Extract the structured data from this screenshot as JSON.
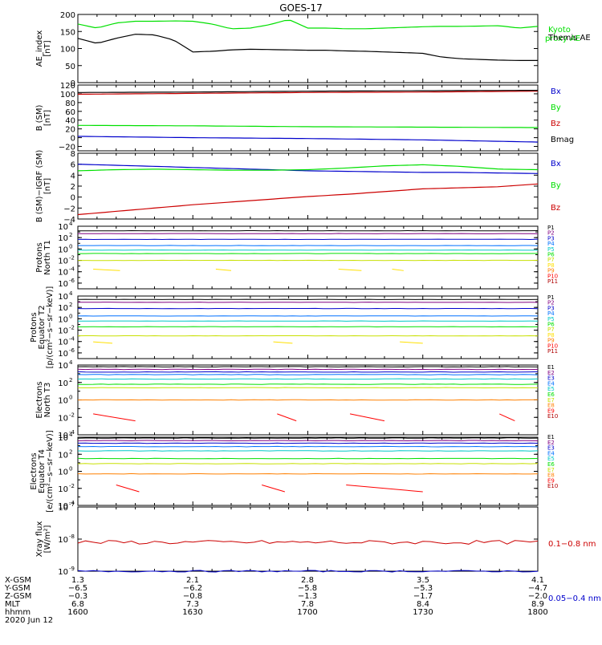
{
  "title": "GOES-17",
  "chart_data": [
    {
      "panel": "ae",
      "type": "line",
      "ylabel": [
        "AE_index",
        "[nT]"
      ],
      "ylim": [
        0,
        200
      ],
      "yticks": [
        "0",
        "50",
        "100",
        "150",
        "200"
      ],
      "series": [
        {
          "name": "Kyoto",
          "name2": "proxy AE",
          "color": "#00e000",
          "x": [
            1600,
            1605,
            1610,
            1615,
            1620,
            1625,
            1630,
            1635,
            1640,
            1645,
            1650,
            1655,
            1700,
            1705,
            1710,
            1715,
            1720,
            1725,
            1730,
            1735,
            1740,
            1745,
            1750,
            1755,
            1800
          ],
          "y": [
            172,
            160,
            175,
            180,
            180,
            181,
            180,
            172,
            158,
            160,
            170,
            185,
            160,
            160,
            158,
            158,
            160,
            162,
            164,
            165,
            165,
            166,
            167,
            160,
            165
          ]
        },
        {
          "name": "Themis AE",
          "color": "#000000",
          "x": [
            1600,
            1605,
            1610,
            1615,
            1620,
            1625,
            1630,
            1635,
            1640,
            1645,
            1650,
            1655,
            1700,
            1705,
            1710,
            1715,
            1720,
            1725,
            1730,
            1735,
            1740,
            1745,
            1750,
            1755,
            1800
          ],
          "y": [
            130,
            115,
            130,
            142,
            140,
            125,
            90,
            92,
            96,
            98,
            97,
            96,
            95,
            95,
            93,
            92,
            90,
            88,
            86,
            75,
            70,
            68,
            66,
            65,
            65
          ]
        }
      ]
    },
    {
      "panel": "bsm",
      "type": "line",
      "ylabel": [
        "B (SM)",
        "[nT]"
      ],
      "ylim": [
        -30,
        120
      ],
      "yticks": [
        "−20",
        "0",
        "20",
        "40",
        "60",
        "80",
        "100",
        "120"
      ],
      "series": [
        {
          "name": "Bx",
          "color": "#0000cc",
          "x": [
            1600,
            1630,
            1700,
            1730,
            1800
          ],
          "y": [
            3,
            0,
            -2,
            -5,
            -10
          ]
        },
        {
          "name": "By",
          "color": "#00e000",
          "x": [
            1600,
            1630,
            1700,
            1730,
            1800
          ],
          "y": [
            28,
            27,
            25,
            24,
            23
          ]
        },
        {
          "name": "Bz",
          "color": "#cc0000",
          "x": [
            1600,
            1630,
            1700,
            1730,
            1800
          ],
          "y": [
            99,
            101,
            103,
            104,
            106
          ]
        },
        {
          "name": "Bmag",
          "color": "#000000",
          "x": [
            1600,
            1630,
            1700,
            1730,
            1800
          ],
          "y": [
            103,
            104,
            106,
            107,
            108
          ]
        }
      ]
    },
    {
      "panel": "bdiff",
      "type": "line",
      "ylabel": [
        "B (SM)−IGRF (SM)",
        "[nT]"
      ],
      "ylim": [
        -4,
        8
      ],
      "yticks": [
        "−4",
        "−2",
        "0",
        "2",
        "4",
        "6",
        "8"
      ],
      "series": [
        {
          "name": "Bx",
          "color": "#0000cc",
          "x": [
            1600,
            1610,
            1620,
            1630,
            1640,
            1650,
            1700,
            1710,
            1720,
            1730,
            1740,
            1750,
            1800
          ],
          "y": [
            6.0,
            5.8,
            5.6,
            5.4,
            5.2,
            5.0,
            4.8,
            4.7,
            4.6,
            4.5,
            4.5,
            4.4,
            4.3
          ]
        },
        {
          "name": "By",
          "color": "#00e000",
          "x": [
            1600,
            1610,
            1620,
            1630,
            1640,
            1650,
            1700,
            1710,
            1720,
            1730,
            1740,
            1750,
            1800
          ],
          "y": [
            4.8,
            5.0,
            5.1,
            5.0,
            4.9,
            4.9,
            5.0,
            5.3,
            5.7,
            5.9,
            5.6,
            5.1,
            5.0
          ]
        },
        {
          "name": "Bz",
          "color": "#cc0000",
          "x": [
            1600,
            1610,
            1620,
            1630,
            1640,
            1650,
            1700,
            1710,
            1720,
            1730,
            1740,
            1750,
            1800
          ],
          "y": [
            -3.2,
            -2.6,
            -2.0,
            -1.4,
            -0.9,
            -0.4,
            0.1,
            0.5,
            1.0,
            1.5,
            1.7,
            1.9,
            2.4
          ]
        }
      ]
    },
    {
      "panel": "protons-north",
      "type": "line",
      "ylabel": [
        "Protons",
        "North T1"
      ],
      "log": true,
      "ylim_exp": [
        -7,
        4
      ],
      "ticks": [
        {
          "exp": 4,
          "label": "10"
        },
        {
          "exp": 2,
          "label": "10"
        },
        {
          "exp": 0,
          "label": "10"
        },
        {
          "exp": -2,
          "label": "10"
        },
        {
          "exp": -4,
          "label": "10"
        },
        {
          "exp": -6,
          "label": "10"
        }
      ],
      "tick_sups": [
        "4",
        "2",
        "0",
        "-2",
        "-4",
        "-6"
      ],
      "series": [
        {
          "name": "P1",
          "color": "#000000",
          "level": 3.2
        },
        {
          "name": "P2",
          "color": "#800080",
          "level": 2.7
        },
        {
          "name": "P3",
          "color": "#0000cc",
          "level": 1.7
        },
        {
          "name": "P4",
          "color": "#0070ff",
          "level": 0.6
        },
        {
          "name": "P5",
          "color": "#00c8c8",
          "level": -0.2
        },
        {
          "name": "P6",
          "color": "#00e000",
          "level": -0.8
        },
        {
          "name": "P7",
          "color": "#c8e000",
          "level": -2.0
        },
        {
          "name": "P8",
          "color": "#ffe000",
          "level": -3.7,
          "segments": [
            [
              1604,
              1611
            ],
            [
              1636,
              1640
            ],
            [
              1708,
              1714
            ],
            [
              1722,
              1725
            ]
          ]
        },
        {
          "name": "P9",
          "color": "#ff8000"
        },
        {
          "name": "P10",
          "color": "#ff0000"
        },
        {
          "name": "P11",
          "color": "#b00000"
        }
      ]
    },
    {
      "panel": "protons-equator",
      "type": "line",
      "ylabel": [
        "Protons",
        "Equator T2",
        "[p/(cm²−s−sr−keV)]"
      ],
      "log": true,
      "ylim_exp": [
        -7,
        4
      ],
      "ticks": [
        {
          "exp": 4,
          "label": "10"
        },
        {
          "exp": 2,
          "label": "10"
        },
        {
          "exp": 0,
          "label": "10"
        },
        {
          "exp": -2,
          "label": "10"
        },
        {
          "exp": -4,
          "label": "10"
        },
        {
          "exp": -6,
          "label": "10"
        }
      ],
      "tick_sups": [
        "4",
        "2",
        "0",
        "-2",
        "-4",
        "-6"
      ],
      "series": [
        {
          "name": "P1",
          "color": "#000000",
          "level": 3.4
        },
        {
          "name": "P2",
          "color": "#800080",
          "level": 2.9
        },
        {
          "name": "P3",
          "color": "#0000cc",
          "level": 1.8
        },
        {
          "name": "P4",
          "color": "#0070ff",
          "level": 0.5
        },
        {
          "name": "P5",
          "color": "#00c8c8",
          "level": -0.4
        },
        {
          "name": "P6",
          "color": "#00e000",
          "level": -1.4
        },
        {
          "name": "P7",
          "color": "#c8e000",
          "level": -3.0
        },
        {
          "name": "P8",
          "color": "#ffe000",
          "level": -4.2,
          "segments": [
            [
              1604,
              1609
            ],
            [
              1651,
              1656
            ],
            [
              1724,
              1730
            ]
          ]
        },
        {
          "name": "P9",
          "color": "#ff8000"
        },
        {
          "name": "P10",
          "color": "#ff0000"
        },
        {
          "name": "P11",
          "color": "#b00000"
        }
      ]
    },
    {
      "panel": "electrons-north",
      "type": "line",
      "ylabel": [
        "Electrons",
        "North T3"
      ],
      "log": true,
      "ylim_exp": [
        -4,
        4
      ],
      "ticks": [
        {
          "exp": 4,
          "label": "10"
        },
        {
          "exp": 2,
          "label": "10"
        },
        {
          "exp": 0,
          "label": "10"
        },
        {
          "exp": -2,
          "label": "10"
        },
        {
          "exp": -4,
          "label": "10"
        }
      ],
      "tick_sups": [
        "4",
        "2",
        "0",
        "-2",
        "-4"
      ],
      "series": [
        {
          "name": "E1",
          "color": "#000000",
          "level": 3.8
        },
        {
          "name": "E2",
          "color": "#800080",
          "level": 3.5
        },
        {
          "name": "E3",
          "color": "#0000cc",
          "level": 3.2
        },
        {
          "name": "E4",
          "color": "#0070ff",
          "level": 2.9
        },
        {
          "name": "E5",
          "color": "#00c8c8",
          "level": 2.4
        },
        {
          "name": "E6",
          "color": "#00e000",
          "level": 1.8
        },
        {
          "name": "E7",
          "color": "#c8e000",
          "level": 1.4
        },
        {
          "name": "E8",
          "color": "#ff8000",
          "level": 0.0
        },
        {
          "name": "E9",
          "color": "#ff0000",
          "segments": [
            [
              1604,
              1615
            ],
            [
              1652,
              1657
            ],
            [
              1711,
              1720
            ],
            [
              1750,
              1754
            ]
          ]
        },
        {
          "name": "E10",
          "color": "#b00000"
        }
      ]
    },
    {
      "panel": "electrons-equator",
      "type": "line",
      "ylabel": [
        "Electrons",
        "Equator T4",
        "[e/(cm²−s−sr−keV)]"
      ],
      "log": true,
      "ylim_exp": [
        -4,
        4
      ],
      "ticks": [
        {
          "exp": 4,
          "label": "10"
        },
        {
          "exp": 2,
          "label": "10"
        },
        {
          "exp": 0,
          "label": "10"
        },
        {
          "exp": -2,
          "label": "10"
        },
        {
          "exp": -4,
          "label": "10"
        }
      ],
      "tick_sups": [
        "4",
        "2",
        "0",
        "-2",
        "-4"
      ],
      "series": [
        {
          "name": "E1",
          "color": "#000000",
          "level": 3.9
        },
        {
          "name": "E2",
          "color": "#800080",
          "level": 3.6
        },
        {
          "name": "E3",
          "color": "#0000cc",
          "level": 3.3
        },
        {
          "name": "E4",
          "color": "#0070ff",
          "level": 2.9
        },
        {
          "name": "E5",
          "color": "#00c8c8",
          "level": 2.4
        },
        {
          "name": "E6",
          "color": "#00e000",
          "level": 1.5
        },
        {
          "name": "E7",
          "color": "#c8e000",
          "level": 0.9
        },
        {
          "name": "E8",
          "color": "#ff8000",
          "level": -0.3
        },
        {
          "name": "E9",
          "color": "#ff0000",
          "segments": [
            [
              1610,
              1616
            ],
            [
              1648,
              1654
            ],
            [
              1710,
              1730
            ]
          ]
        },
        {
          "name": "E10",
          "color": "#b00000"
        }
      ]
    },
    {
      "panel": "xray",
      "type": "line",
      "ylabel": [
        "Xray flux",
        "[W/m²]"
      ],
      "log": true,
      "ylim_exp": [
        -9,
        -7
      ],
      "ticks": [
        {
          "exp": -7,
          "label": "10"
        },
        {
          "exp": -8,
          "label": "10"
        },
        {
          "exp": -9,
          "label": "10"
        }
      ],
      "tick_sups": [
        "-7",
        "-8",
        "-9"
      ],
      "series": [
        {
          "name": "0.1−0.8 nm",
          "color": "#cc0000",
          "level": -8.1
        },
        {
          "name": "0.05−0.4 nm",
          "color": "#0000cc",
          "level": -9.0
        }
      ]
    }
  ],
  "x_axis": {
    "rows": [
      {
        "label": "X-GSM",
        "values": [
          "1.3",
          "2.1",
          "2.8",
          "3.5",
          "4.1"
        ]
      },
      {
        "label": "Y-GSM",
        "values": [
          "−6.5",
          "−6.2",
          "−5.8",
          "−5.3",
          "−4.7"
        ]
      },
      {
        "label": "Z-GSM",
        "values": [
          "−0.3",
          "−0.8",
          "−1.3",
          "−1.7",
          "−2.0"
        ]
      },
      {
        "label": "MLT",
        "values": [
          "6.8",
          "7.3",
          "7.8",
          "8.4",
          "8.9"
        ]
      },
      {
        "label": "hhmm",
        "values": [
          "1600",
          "1630",
          "1700",
          "1730",
          "1800"
        ]
      }
    ],
    "date": "2020 Jun 12"
  }
}
